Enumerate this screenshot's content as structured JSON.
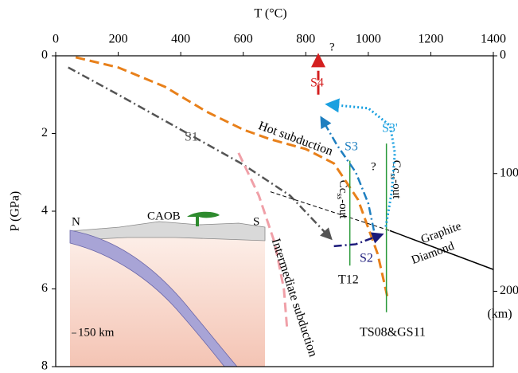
{
  "chart_data": {
    "type": "line",
    "x_label": "T (°C)",
    "y_label": "P (GPa)",
    "y2_label": "(km)",
    "xlim": [
      0,
      1400
    ],
    "xticks": [
      0,
      200,
      400,
      600,
      800,
      1000,
      1200,
      1400
    ],
    "ylim": [
      0,
      8
    ],
    "yticks": [
      0,
      2,
      4,
      6,
      8
    ],
    "y_inverted": true,
    "y2lim": [
      0,
      264
    ],
    "y2ticks": [
      0,
      100,
      200
    ],
    "series": [
      {
        "name": "Hot subduction",
        "color": "#e8801a",
        "style": "dashed",
        "x": [
          64,
          200,
          350,
          483,
          600,
          687,
          800,
          890,
          967,
          1030,
          1061
        ],
        "values": [
          0.04,
          0.3,
          0.8,
          1.44,
          1.9,
          2.15,
          2.4,
          2.77,
          3.7,
          5.1,
          6.2
        ]
      },
      {
        "name": "S1",
        "color": "#555555",
        "style": "dashdot",
        "arrow": true,
        "x": [
          40,
          200,
          400,
          600,
          750,
          880
        ],
        "values": [
          0.3,
          1.0,
          1.9,
          2.8,
          3.6,
          4.7
        ]
      },
      {
        "name": "Intermediate subduction",
        "color": "#f0a0a8",
        "style": "dashed",
        "x": [
          585,
          650,
          700,
          730,
          740
        ],
        "values": [
          2.5,
          3.6,
          4.8,
          6.0,
          7.0
        ]
      },
      {
        "color": "#000000",
        "style": "thin-dashed",
        "x": [
          687,
          1069
        ],
        "values": [
          3.5,
          4.5
        ]
      },
      {
        "color": "#000000",
        "style": "solid",
        "x": [
          1069,
          1400
        ],
        "values": [
          4.5,
          5.5
        ]
      },
      {
        "name": "T12",
        "color": "#2a9a3a",
        "style": "solid",
        "x": [
          941,
          941
        ],
        "values": [
          2.7,
          5.4
        ]
      },
      {
        "name": "TS08&GS11",
        "color": "#2a9a3a",
        "style": "solid",
        "x": [
          1058,
          1058
        ],
        "values": [
          2.26,
          6.6
        ]
      },
      {
        "name": "S3",
        "color": "#1e7fc0",
        "style": "dashdot",
        "arrow": true,
        "x": [
          1018,
          1000,
          960,
          900,
          850
        ],
        "values": [
          4.5,
          3.8,
          3.0,
          2.3,
          1.6
        ]
      },
      {
        "name": "S3'",
        "color": "#1aa0e0",
        "style": "dotted",
        "arrow": true,
        "x": [
          1056,
          1075,
          1085,
          1070,
          1000,
          870
        ],
        "values": [
          4.4,
          3.5,
          2.5,
          1.8,
          1.35,
          1.25
        ]
      },
      {
        "name": "S2",
        "color": "#1b1a7a",
        "style": "dashdot",
        "arrow": true,
        "x": [
          890,
          960,
          1043
        ],
        "values": [
          4.9,
          4.85,
          4.6
        ]
      },
      {
        "name": "S4",
        "color": "#d42020",
        "style": "dashed",
        "arrow": true,
        "x": [
          840,
          840
        ],
        "values": [
          1.0,
          0.0
        ]
      }
    ],
    "annotations": {
      "cc": "Cc",
      "ss": "ss",
      "out": "-out",
      "graphite": "Graphite",
      "diamond": "Diamond",
      "caob": "CAOB",
      "north": "N",
      "south": "S",
      "depth": "150 km",
      "question": "?"
    }
  }
}
